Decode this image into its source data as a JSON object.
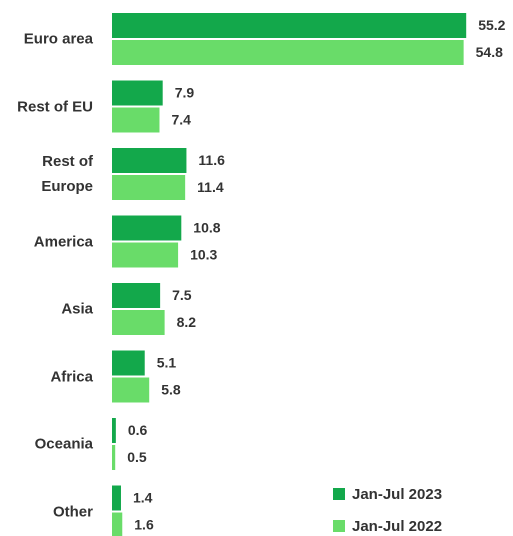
{
  "chart_data": {
    "type": "bar",
    "orientation": "horizontal",
    "categories": [
      "Euro area",
      "Rest of EU",
      "Rest of Europe",
      "America",
      "Asia",
      "Africa",
      "Oceania",
      "Other"
    ],
    "series": [
      {
        "name": "Jan-Jul 2023",
        "color": "#13a84b",
        "values": [
          55.2,
          7.9,
          11.6,
          10.8,
          7.5,
          5.1,
          0.6,
          1.4
        ]
      },
      {
        "name": "Jan-Jul 2022",
        "color": "#69dc69",
        "values": [
          54.8,
          7.4,
          11.4,
          10.3,
          8.2,
          5.8,
          0.5,
          1.6
        ]
      }
    ],
    "xlim": [
      0,
      60
    ],
    "legend": "lower right"
  }
}
